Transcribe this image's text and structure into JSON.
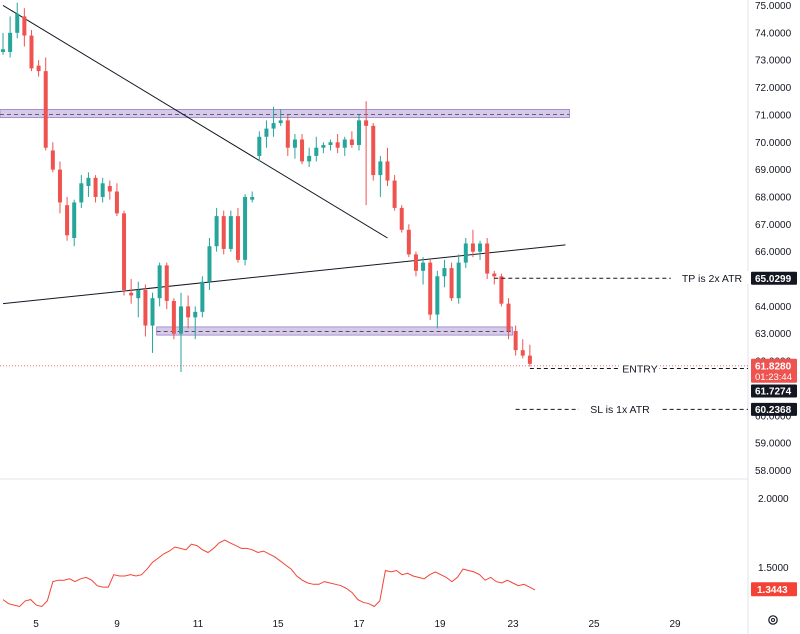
{
  "chart_data": [
    {
      "type": "candlestick",
      "ylim": [
        57.8,
        75.2
      ],
      "y_ticks": [
        "75.0000",
        "74.0000",
        "73.0000",
        "72.0000",
        "71.0000",
        "70.0000",
        "69.0000",
        "68.0000",
        "67.0000",
        "66.0000",
        "65.0000",
        "64.0000",
        "63.0000",
        "62.0000",
        "61.0000",
        "60.0000",
        "59.0000",
        "58.0000"
      ],
      "x_ticks": [
        "5",
        "9",
        "11",
        "15",
        "17",
        "19",
        "23",
        "25",
        "29"
      ],
      "colors": {
        "up": "#26a69a",
        "down": "#ef5350",
        "zone": "#c7b8e0",
        "zone_border": "#9c7fc9",
        "tag_bg": "#131722",
        "current_tag_bg": "#ef5350"
      },
      "ohlc": [
        [
          73.3,
          74.0,
          73.2,
          73.4
        ],
        [
          73.3,
          74.6,
          73.1,
          74.0
        ],
        [
          74.0,
          75.1,
          73.8,
          74.7
        ],
        [
          74.6,
          74.9,
          73.5,
          73.9
        ],
        [
          73.9,
          74.1,
          72.6,
          72.7
        ],
        [
          72.8,
          73.0,
          72.4,
          72.6
        ],
        [
          72.6,
          73.1,
          69.7,
          69.8
        ],
        [
          69.7,
          70.0,
          68.9,
          69.0
        ],
        [
          69.0,
          69.3,
          67.4,
          67.8
        ],
        [
          67.7,
          68.0,
          66.4,
          66.6
        ],
        [
          66.5,
          67.9,
          66.2,
          67.8
        ],
        [
          67.8,
          68.8,
          67.6,
          68.5
        ],
        [
          68.4,
          68.9,
          68.0,
          68.7
        ],
        [
          68.7,
          68.8,
          67.8,
          68.0
        ],
        [
          68.0,
          68.7,
          67.8,
          68.5
        ],
        [
          68.4,
          68.6,
          67.9,
          68.2
        ],
        [
          68.2,
          68.5,
          67.3,
          67.4
        ],
        [
          67.4,
          67.5,
          64.4,
          64.6
        ],
        [
          64.5,
          65.0,
          64.1,
          64.4
        ],
        [
          64.3,
          64.9,
          63.6,
          64.6
        ],
        [
          64.6,
          64.8,
          62.9,
          63.3
        ],
        [
          63.3,
          64.5,
          62.3,
          64.3
        ],
        [
          64.3,
          65.6,
          64.0,
          65.5
        ],
        [
          65.5,
          65.6,
          63.9,
          64.2
        ],
        [
          64.2,
          64.3,
          62.8,
          63.0
        ],
        [
          63.0,
          64.5,
          61.6,
          64.0
        ],
        [
          64.0,
          64.4,
          63.2,
          63.6
        ],
        [
          63.6,
          64.0,
          62.8,
          63.8
        ],
        [
          63.8,
          65.1,
          63.6,
          64.9
        ],
        [
          64.9,
          66.5,
          64.6,
          66.2
        ],
        [
          66.2,
          67.6,
          66.0,
          67.3
        ],
        [
          67.3,
          67.5,
          65.9,
          66.1
        ],
        [
          66.1,
          67.5,
          66.0,
          67.3
        ],
        [
          67.3,
          67.6,
          65.6,
          65.7
        ],
        [
          65.7,
          68.1,
          65.5,
          68.0
        ],
        [
          67.9,
          68.2,
          67.8,
          68.0
        ],
        [
          69.5,
          70.4,
          69.3,
          70.2
        ],
        [
          70.2,
          70.8,
          69.8,
          70.5
        ],
        [
          70.5,
          71.3,
          70.2,
          70.7
        ],
        [
          70.7,
          71.2,
          70.6,
          70.8
        ],
        [
          70.8,
          71.0,
          69.5,
          69.8
        ],
        [
          69.8,
          70.3,
          69.4,
          70.1
        ],
        [
          70.1,
          70.3,
          69.2,
          69.3
        ],
        [
          69.3,
          69.8,
          69.1,
          69.5
        ],
        [
          69.5,
          70.2,
          69.3,
          69.8
        ],
        [
          69.8,
          70.0,
          69.6,
          69.9
        ],
        [
          69.9,
          70.1,
          69.7,
          70.0
        ],
        [
          70.0,
          70.3,
          69.6,
          69.8
        ],
        [
          69.8,
          70.2,
          69.5,
          70.1
        ],
        [
          70.1,
          70.4,
          69.8,
          69.9
        ],
        [
          69.9,
          71.0,
          69.7,
          70.8
        ],
        [
          70.8,
          71.5,
          67.7,
          70.6
        ],
        [
          70.6,
          70.7,
          68.6,
          68.8
        ],
        [
          68.8,
          69.5,
          68.0,
          69.3
        ],
        [
          69.3,
          69.8,
          68.4,
          68.6
        ],
        [
          68.6,
          68.8,
          67.5,
          67.6
        ],
        [
          67.6,
          67.7,
          66.7,
          66.8
        ],
        [
          66.8,
          67.0,
          65.8,
          65.9
        ],
        [
          65.9,
          66.0,
          65.1,
          65.3
        ],
        [
          65.3,
          65.8,
          64.8,
          65.6
        ],
        [
          65.6,
          65.7,
          63.5,
          63.7
        ],
        [
          63.7,
          65.3,
          63.2,
          65.1
        ],
        [
          65.1,
          65.7,
          64.7,
          65.4
        ],
        [
          65.4,
          65.6,
          64.2,
          64.3
        ],
        [
          64.3,
          65.9,
          64.1,
          65.6
        ],
        [
          65.6,
          66.5,
          65.4,
          66.3
        ],
        [
          66.3,
          66.8,
          65.8,
          66.0
        ],
        [
          66.0,
          66.4,
          65.7,
          66.3
        ],
        [
          66.3,
          66.5,
          65.0,
          65.2
        ],
        [
          65.2,
          65.3,
          64.8,
          65.1
        ],
        [
          65.1,
          65.2,
          64.0,
          64.1
        ],
        [
          64.1,
          64.3,
          62.8,
          63.1
        ],
        [
          63.1,
          63.3,
          62.2,
          62.4
        ],
        [
          62.4,
          62.8,
          62.1,
          62.2
        ],
        [
          62.2,
          62.6,
          61.8,
          61.9
        ]
      ],
      "zones": [
        {
          "y_top": 71.2,
          "y_bottom": 70.9,
          "midline": 71.02,
          "start_candle": 0,
          "end_candle": 79
        },
        {
          "y_top": 63.25,
          "y_bottom": 62.95,
          "midline": 63.08,
          "start_candle": 22,
          "end_candle": 71
        }
      ],
      "trendlines": [
        {
          "from": [
            0,
            75.0
          ],
          "to": [
            54,
            66.5
          ]
        },
        {
          "from": [
            0,
            64.1
          ],
          "to": [
            79,
            66.25
          ]
        }
      ],
      "levels": [
        {
          "name": "tp",
          "value": 65.0299,
          "label": "TP is 2x ATR",
          "tag": "65.0299",
          "start_candle": 69
        },
        {
          "name": "entry",
          "value": 61.73,
          "label": "ENTRY",
          "tag": "61.7274",
          "start_candle": 74
        },
        {
          "name": "sl",
          "value": 60.2368,
          "label": "SL is 1x ATR",
          "tag": "60.2368",
          "start_candle": 72
        }
      ],
      "current_price": {
        "value": 61.828,
        "tag": "61.8280",
        "countdown": "01:23:44"
      }
    },
    {
      "type": "line",
      "name": "",
      "ylim": [
        1.18,
        2.12
      ],
      "y_ticks": [
        "2.0000",
        "1.5000"
      ],
      "line_color": "#f44336",
      "values": [
        1.27,
        1.24,
        1.23,
        1.22,
        1.26,
        1.27,
        1.23,
        1.22,
        1.26,
        1.4,
        1.41,
        1.41,
        1.42,
        1.4,
        1.42,
        1.43,
        1.41,
        1.37,
        1.36,
        1.36,
        1.45,
        1.44,
        1.44,
        1.45,
        1.44,
        1.45,
        1.49,
        1.54,
        1.57,
        1.6,
        1.62,
        1.65,
        1.64,
        1.63,
        1.67,
        1.66,
        1.63,
        1.61,
        1.64,
        1.68,
        1.7,
        1.68,
        1.66,
        1.64,
        1.64,
        1.63,
        1.61,
        1.62,
        1.6,
        1.58,
        1.55,
        1.52,
        1.49,
        1.44,
        1.41,
        1.39,
        1.38,
        1.38,
        1.4,
        1.39,
        1.38,
        1.37,
        1.35,
        1.32,
        1.27,
        1.25,
        1.24,
        1.22,
        1.26,
        1.48,
        1.47,
        1.48,
        1.45,
        1.46,
        1.44,
        1.43,
        1.42,
        1.45,
        1.47,
        1.45,
        1.43,
        1.4,
        1.43,
        1.49,
        1.48,
        1.47,
        1.45,
        1.41,
        1.43,
        1.4,
        1.39,
        1.41,
        1.39,
        1.37,
        1.38,
        1.36,
        1.34
      ],
      "current": {
        "value": 1.3443,
        "tag": "1.3443"
      }
    }
  ]
}
